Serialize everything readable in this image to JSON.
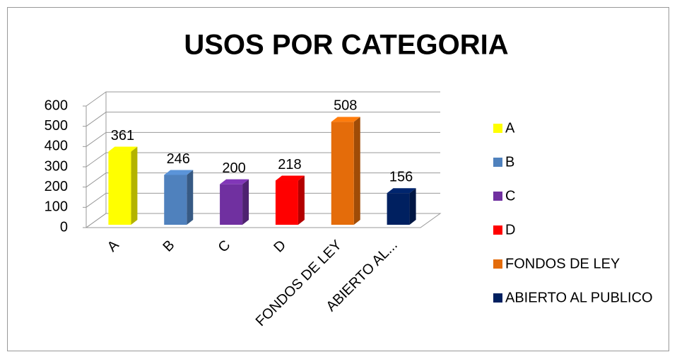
{
  "chart_data": {
    "type": "bar3d",
    "title": "USOS POR CATEGORIA",
    "categories": [
      "A",
      "B",
      "C",
      "D",
      "FONDOS DE LEY",
      "ABIERTO AL..."
    ],
    "legend": [
      "A",
      "B",
      "C",
      "D",
      "FONDOS DE LEY",
      "ABIERTO AL PUBLICO"
    ],
    "values": [
      361,
      246,
      200,
      218,
      508,
      156
    ],
    "colors": [
      "#ffff00",
      "#4f81bd",
      "#7030a0",
      "#ff0000",
      "#e46c0a",
      "#002060"
    ],
    "ylim": [
      0,
      600
    ],
    "yticks": [
      0,
      100,
      200,
      300,
      400,
      500,
      600
    ],
    "grid": true
  }
}
